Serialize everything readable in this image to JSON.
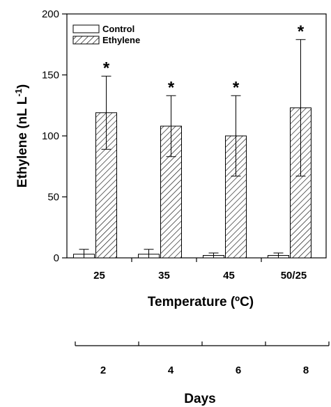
{
  "chart_data": {
    "type": "bar",
    "categories": [
      "25",
      "35",
      "45",
      "50/25"
    ],
    "series": [
      {
        "name": "Control",
        "values": [
          3,
          3,
          2,
          2
        ],
        "errors": [
          4,
          4,
          2,
          2
        ],
        "pattern": "none"
      },
      {
        "name": "Ethylene",
        "values": [
          119,
          108,
          100,
          123
        ],
        "errors": [
          30,
          25,
          33,
          56
        ],
        "pattern": "hatched"
      }
    ],
    "significance": [
      "*",
      "*",
      "*",
      "*"
    ],
    "ylabel": "Ethylene (nL L",
    "ylabel_superscript": "-1",
    "ylabel_close": ")",
    "xlabel": "Temperature (ºC)",
    "yticks": [
      "0",
      "50",
      "100",
      "150",
      "200"
    ],
    "ylim": [
      0,
      200
    ],
    "legend_position": "top-left",
    "secondary_axis": {
      "ticks": [
        "2",
        "4",
        "6",
        "8"
      ],
      "label": "Days"
    }
  }
}
